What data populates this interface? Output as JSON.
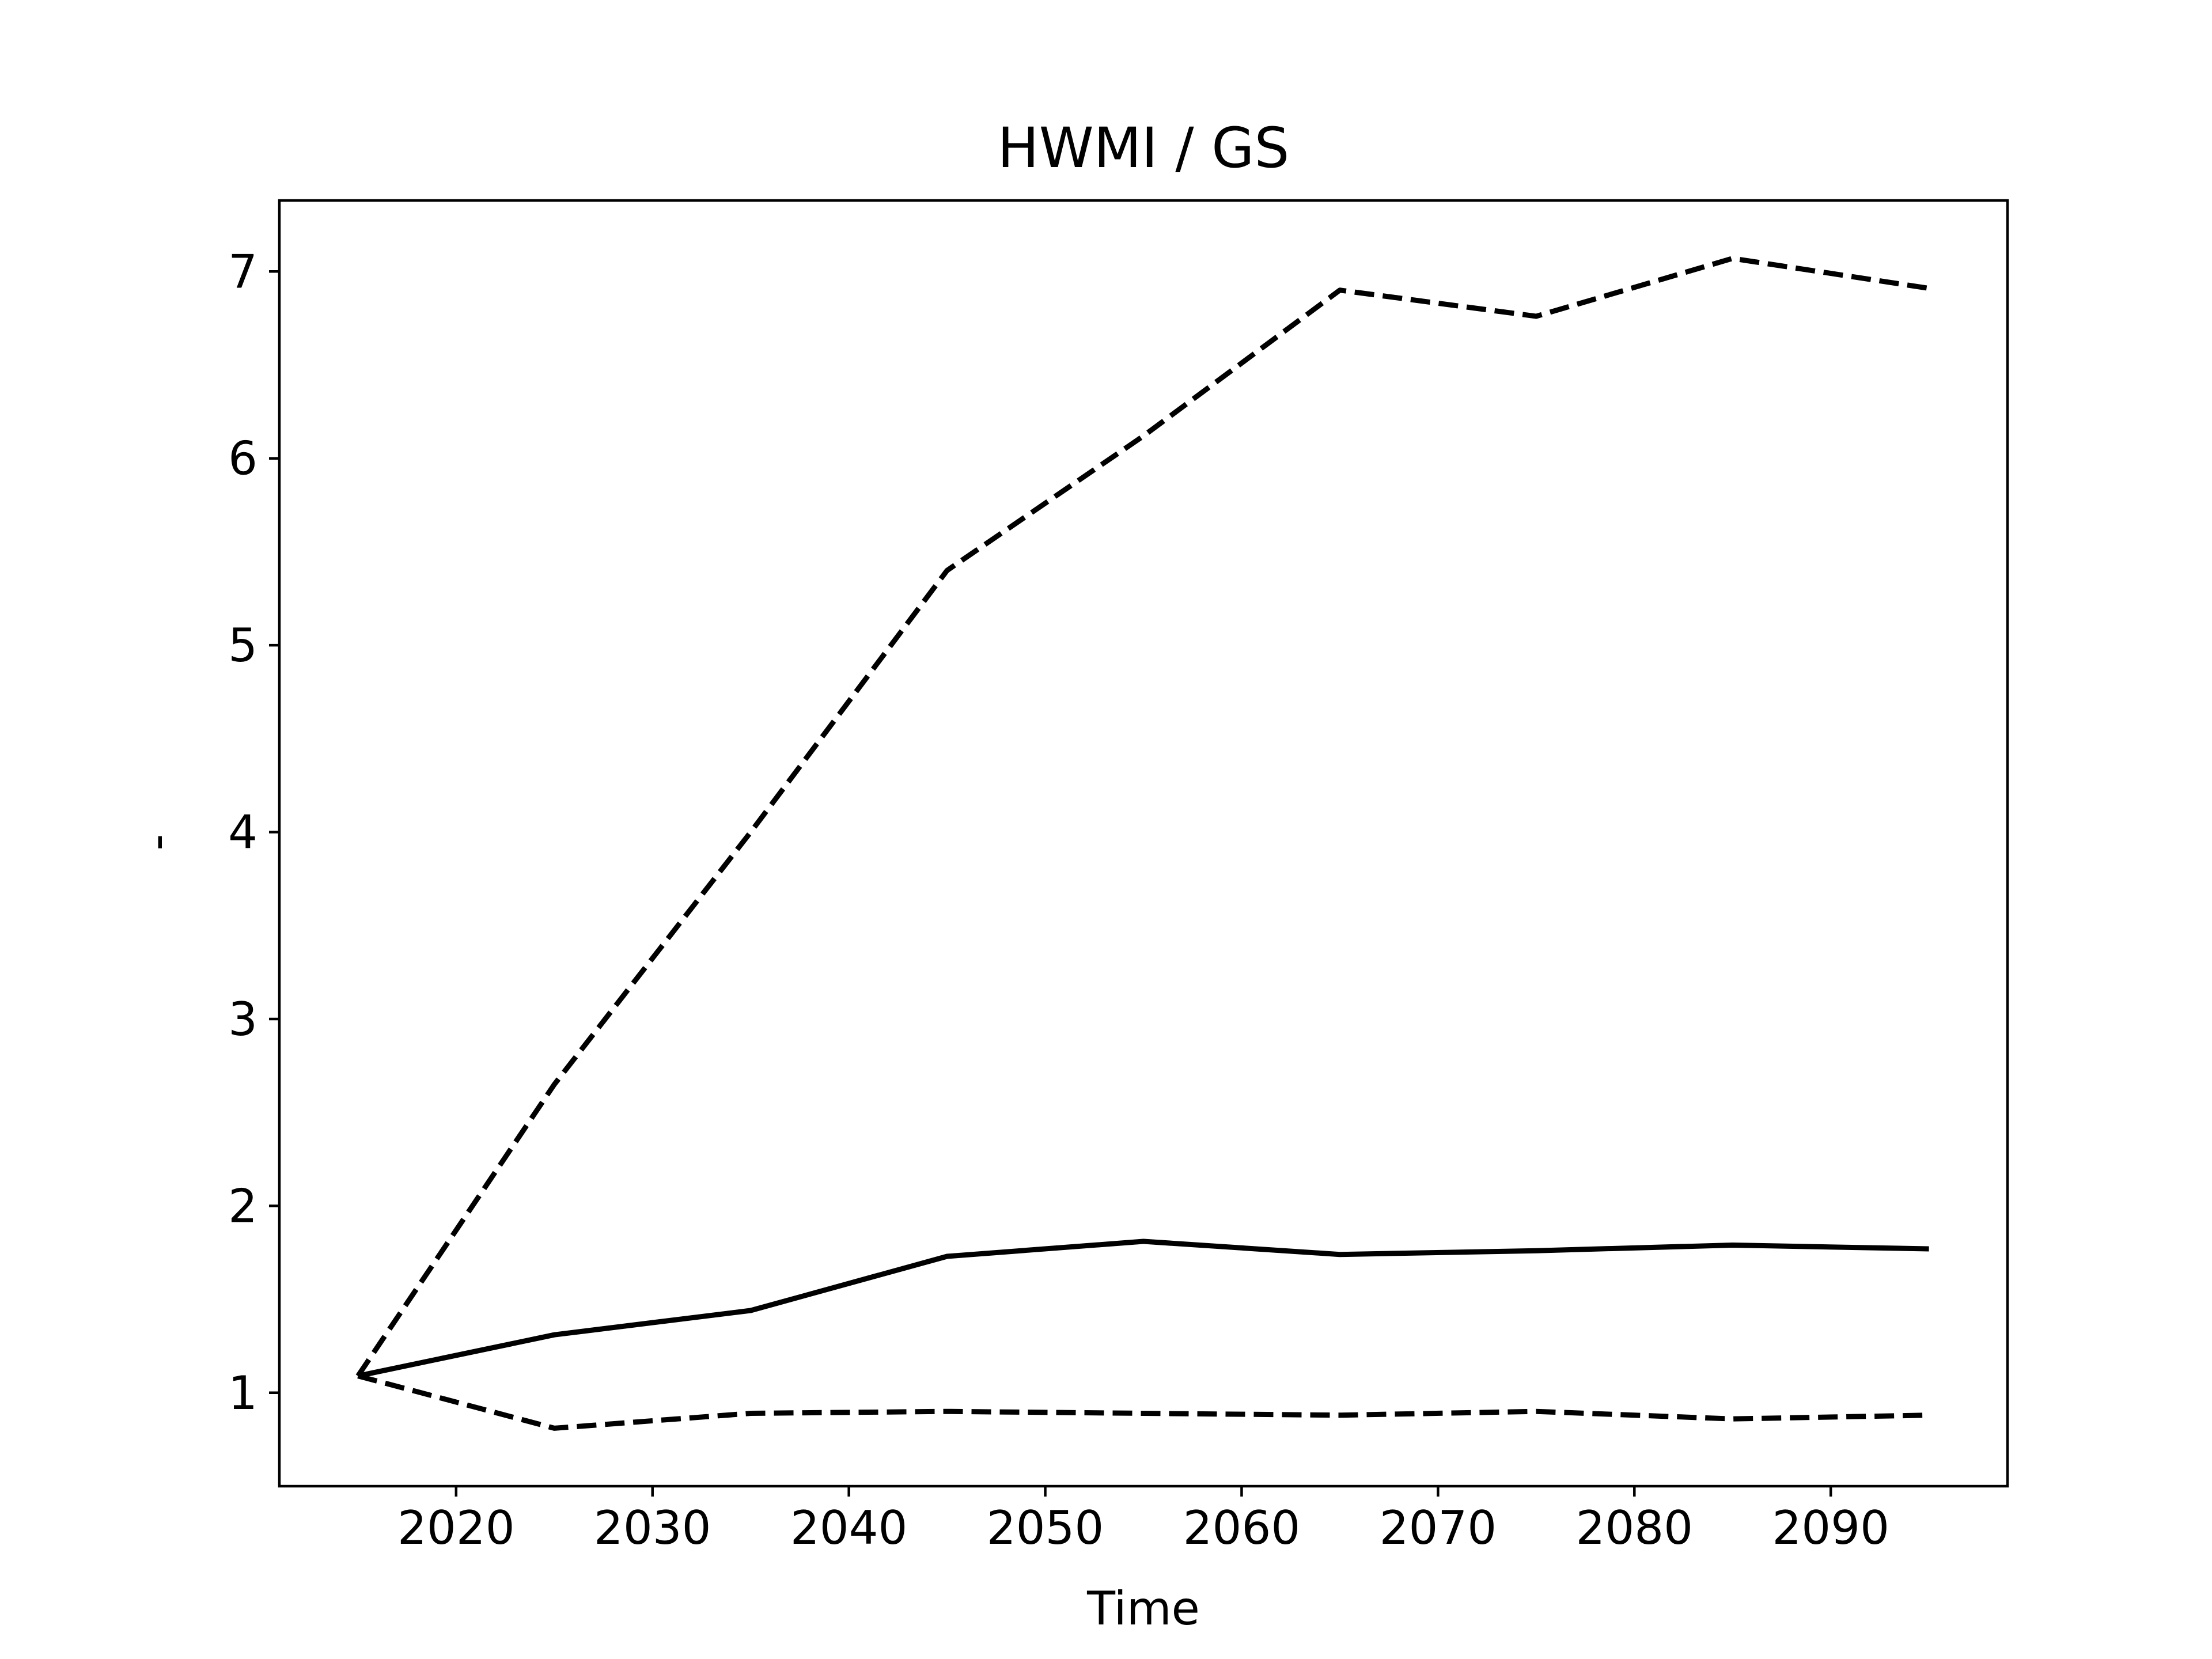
{
  "chart_data": {
    "type": "line",
    "title": "HWMI / GS",
    "xlabel": "Time",
    "ylabel": "-",
    "xlim": [
      2011,
      2099
    ],
    "ylim": [
      0.5,
      7.38
    ],
    "xticks": [
      2020,
      2030,
      2040,
      2050,
      2060,
      2070,
      2080,
      2090
    ],
    "yticks": [
      1,
      2,
      3,
      4,
      5,
      6,
      7
    ],
    "grid": false,
    "legend": "none",
    "x": [
      2015,
      2025,
      2035,
      2045,
      2055,
      2065,
      2075,
      2085,
      2095
    ],
    "series": [
      {
        "style": "solid",
        "color": "#000000",
        "values": [
          1.09,
          1.31,
          1.44,
          1.73,
          1.81,
          1.74,
          1.76,
          1.79,
          1.77
        ]
      },
      {
        "style": "dashed",
        "color": "#000000",
        "values": [
          1.09,
          2.65,
          4.0,
          5.4,
          6.12,
          6.9,
          6.76,
          7.07,
          6.91
        ]
      },
      {
        "style": "dashed",
        "color": "#000000",
        "values": [
          1.09,
          0.81,
          0.89,
          0.9,
          0.89,
          0.88,
          0.9,
          0.86,
          0.88
        ]
      }
    ]
  }
}
